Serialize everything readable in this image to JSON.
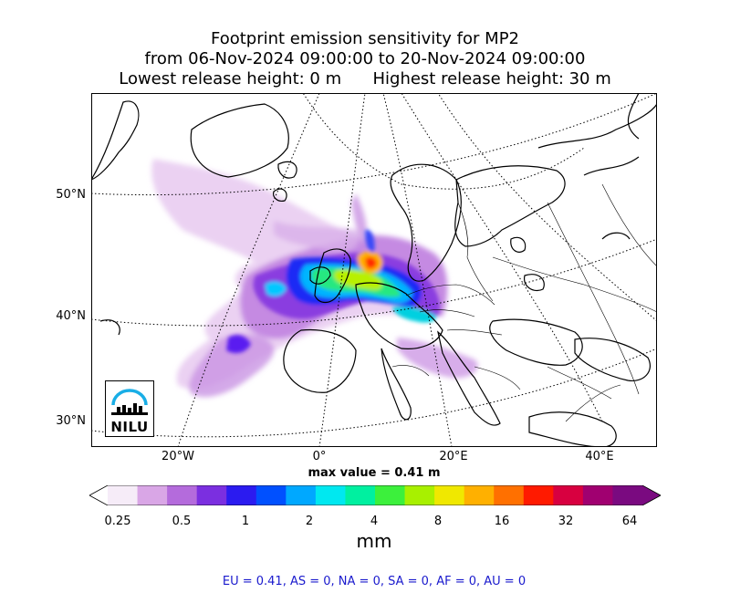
{
  "title": {
    "line1": "Footprint emission sensitivity for MP2",
    "line2": "from 06-Nov-2024 09:00:00 to 20-Nov-2024 09:00:00",
    "lowest": "Lowest release height: 0 m",
    "highest": "Highest release height: 30 m"
  },
  "map": {
    "lat_labels": [
      "50°N",
      "40°N",
      "30°N"
    ],
    "lon_labels": [
      "20°W",
      "0°",
      "20°E",
      "40°E"
    ],
    "max_value": "max value = 0.41 m",
    "logo_text": "NILU"
  },
  "colorbar": {
    "ticks": [
      "0.25",
      "0.5",
      "1",
      "2",
      "4",
      "8",
      "16",
      "32",
      "64"
    ],
    "unit": "mm",
    "colors": [
      "#f6ecf8",
      "#d9a6e6",
      "#b46bdc",
      "#7b2fe0",
      "#2b1bf0",
      "#0050ff",
      "#00a8ff",
      "#00e8f0",
      "#00f0a0",
      "#3cf03c",
      "#a8f000",
      "#f0e800",
      "#ffb000",
      "#ff7000",
      "#ff1a00",
      "#d80040",
      "#a00070",
      "#7a0a80"
    ]
  },
  "summary": "EU = 0.41,  AS = 0,  NA = 0,  SA = 0,  AF = 0,  AU = 0"
}
